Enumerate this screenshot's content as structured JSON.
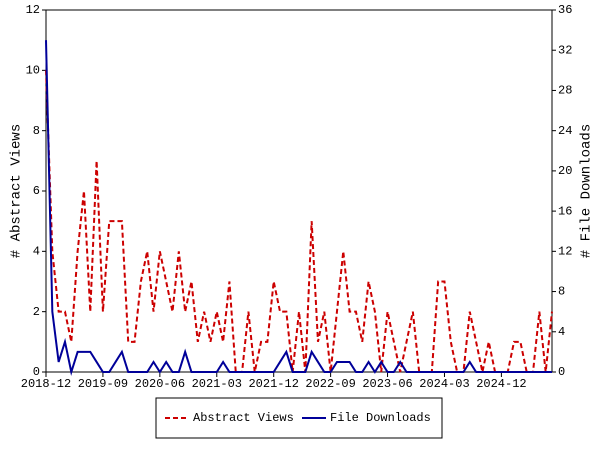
{
  "chart_data": {
    "type": "line",
    "y_label": "# Abstract Views",
    "y2_label": "# File Downloads",
    "categories": [
      "2018-12",
      null,
      null,
      null,
      null,
      null,
      null,
      null,
      null,
      "2019-09",
      null,
      null,
      null,
      null,
      null,
      null,
      null,
      null,
      "2020-06",
      null,
      null,
      null,
      null,
      null,
      null,
      null,
      null,
      "2021-03",
      null,
      null,
      null,
      null,
      null,
      null,
      null,
      null,
      "2021-12",
      null,
      null,
      null,
      null,
      null,
      null,
      null,
      null,
      "2022-09",
      null,
      null,
      null,
      null,
      null,
      null,
      null,
      null,
      "2023-06",
      null,
      null,
      null,
      null,
      null,
      null,
      null,
      null,
      "2024-03",
      null,
      null,
      null,
      null,
      null,
      null,
      null,
      null,
      "2024-12",
      null,
      null,
      null,
      null,
      null,
      null,
      null,
      null
    ],
    "series": [
      {
        "name": "Abstract Views",
        "color": "#cc0000",
        "dash": true,
        "axis": "y",
        "values": [
          10,
          4,
          2,
          2,
          1,
          4,
          6,
          2,
          7,
          2,
          5,
          5,
          5,
          1,
          1,
          3,
          4,
          2,
          4,
          3,
          2,
          4,
          2,
          3,
          1,
          2,
          1,
          2,
          1,
          3,
          0,
          0,
          2,
          0,
          1,
          1,
          3,
          2,
          2,
          0,
          2,
          0,
          5,
          1,
          2,
          0,
          2,
          4,
          2,
          2,
          1,
          3,
          2,
          0,
          2,
          1,
          0,
          1,
          2,
          0,
          0,
          0,
          3,
          3,
          1,
          0,
          0,
          2,
          1,
          0,
          1,
          0,
          0,
          0,
          1,
          1,
          0,
          0,
          2,
          0,
          2
        ]
      },
      {
        "name": "File Downloads",
        "color": "#000099",
        "dash": false,
        "axis": "y2",
        "values": [
          33,
          6,
          1,
          3,
          0,
          2,
          2,
          2,
          1,
          0,
          0,
          1,
          2,
          0,
          0,
          0,
          0,
          1,
          0,
          1,
          0,
          0,
          2,
          0,
          0,
          0,
          0,
          0,
          1,
          0,
          0,
          0,
          0,
          0,
          0,
          0,
          0,
          1,
          2,
          0,
          0,
          0,
          2,
          1,
          0,
          0,
          1,
          1,
          1,
          0,
          0,
          1,
          0,
          1,
          0,
          0,
          1,
          0,
          0,
          0,
          0,
          0,
          0,
          0,
          0,
          0,
          0,
          1,
          0,
          0,
          0,
          0,
          0,
          0,
          0,
          0,
          0,
          0,
          0,
          0,
          0
        ]
      }
    ],
    "ylim": [
      0,
      12
    ],
    "yticks": [
      0,
      2,
      4,
      6,
      8,
      10,
      12
    ],
    "y2lim": [
      0,
      36
    ],
    "y2ticks": [
      0,
      4,
      8,
      12,
      16,
      20,
      24,
      28,
      32,
      36
    ],
    "legend": "bottom"
  }
}
